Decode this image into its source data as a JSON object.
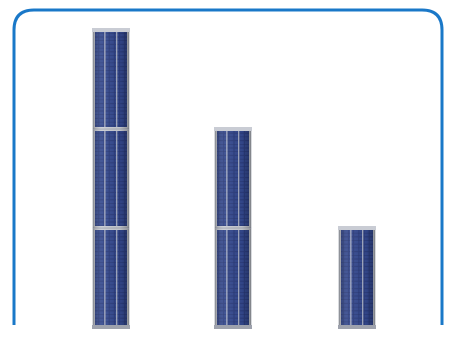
{
  "scene": {
    "frame_color": "#1a78c8",
    "panel_blue": "#2a3a78",
    "panel_dark": "#1c2858",
    "panel_light": "#5a6fb0",
    "frame_metal": "#c9ccd4",
    "frame_metal_dark": "#9ea2ad"
  },
  "columns": [
    {
      "name": "column-left",
      "panels": 3
    },
    {
      "name": "column-middle",
      "panels": 2
    },
    {
      "name": "column-right",
      "panels": 1
    }
  ]
}
